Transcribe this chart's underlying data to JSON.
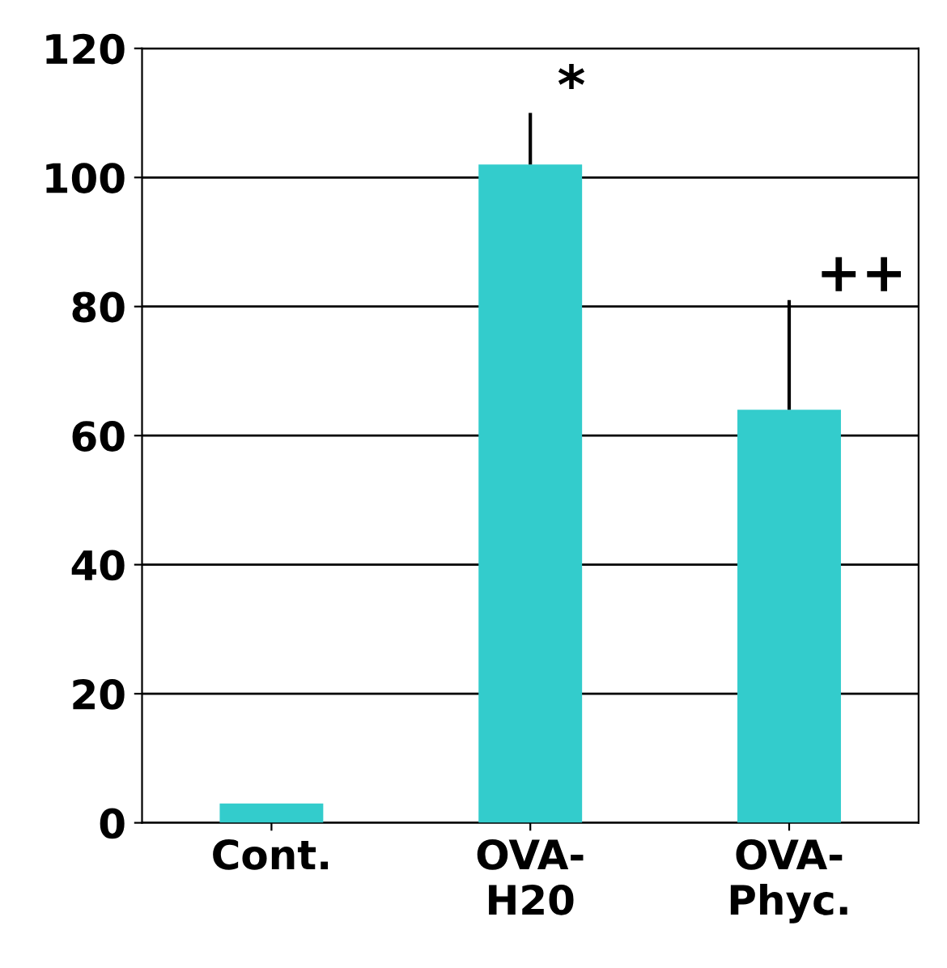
{
  "chart_data": {
    "type": "bar",
    "categories": [
      "Cont.",
      "OVA-\nH20",
      "OVA-\nPhyc."
    ],
    "values": [
      3,
      102,
      64
    ],
    "color": "#33cccc",
    "errors": [
      null,
      [
        102,
        110
      ],
      [
        64,
        81
      ]
    ],
    "ylim": [
      0,
      120
    ],
    "yticks": [
      0,
      20,
      40,
      60,
      80,
      100,
      120
    ],
    "grid": "y",
    "annotations": [
      {
        "text": "*",
        "x": "OVA-\nH20",
        "y": 110
      },
      {
        "text": "++",
        "x": "OVA-\nPhyc.",
        "y": 81
      }
    ]
  }
}
